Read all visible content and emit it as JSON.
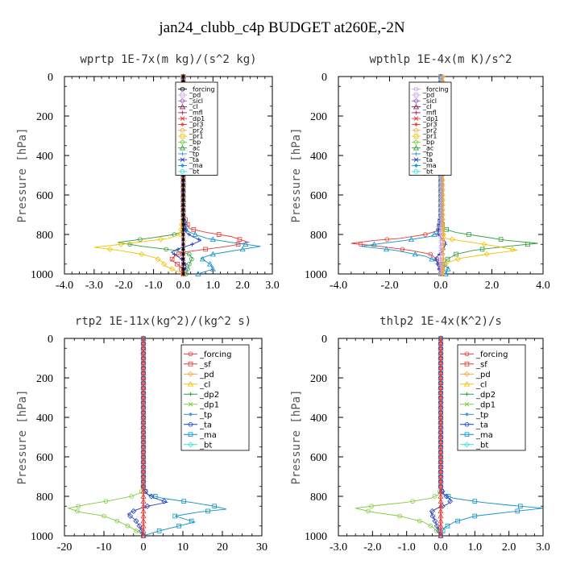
{
  "figure": {
    "title": "jan24_clubb_c4p  BUDGET at260E,-2N"
  },
  "chart_data": [
    {
      "type": "line",
      "title": "wprtp  1E-7x(m kg)/(s^2 kg)",
      "ylabel": "Pressure [hPa]",
      "xlim": [
        -4.0,
        3.0
      ],
      "ylim": [
        0,
        1000
      ],
      "y_inverted": false,
      "xticks": [
        "-4.0",
        "-3.0",
        "-2.0",
        "-1.0",
        "0.0",
        "1.0",
        "2.0",
        "3.0"
      ],
      "xtick_values": [
        -4,
        -3,
        -2,
        -1,
        0,
        1,
        2,
        3
      ],
      "yticks": [
        "0",
        "200",
        "400",
        "600",
        "800",
        "1000"
      ],
      "ytick_values": [
        0,
        200,
        400,
        600,
        800,
        1000
      ],
      "legend_style": "small",
      "legend": [
        "_forcing",
        "_pd",
        "_sicl",
        "_cl",
        "_mfl",
        "_dp1",
        "_pr3",
        "_pr2",
        "_pr1",
        "_bp",
        "_ac",
        "_tp",
        "_ta",
        "_ma",
        "_bt"
      ],
      "legend_colors": [
        "#000000",
        "#c8a0e6",
        "#9b5fc0",
        "#8b1a4a",
        "#c2185b",
        "#e53935",
        "#e53935",
        "#f4a742",
        "#f2c200",
        "#7ccc3a",
        "#2e9e3a",
        "#3a8fc4",
        "#1f3fbf",
        "#0b8fc7",
        "#33e0e0"
      ],
      "series": [
        {
          "color": "#2e9e3a",
          "x": [
            0,
            0,
            0,
            0.1,
            -0.3,
            -1.2,
            -2.2,
            -1.4,
            -0.3,
            0.2,
            0.3,
            0.2,
            0.1
          ],
          "y": [
            0,
            700,
            760,
            780,
            800,
            820,
            840,
            860,
            880,
            900,
            920,
            950,
            1000
          ]
        },
        {
          "color": "#e53935",
          "x": [
            0,
            0,
            0.2,
            0.8,
            1.6,
            2.2,
            1.5,
            0.5,
            0,
            -0.3,
            -0.4,
            -0.1,
            0
          ],
          "y": [
            0,
            700,
            770,
            790,
            810,
            840,
            860,
            880,
            890,
            910,
            930,
            960,
            1000
          ]
        },
        {
          "color": "#f2c200",
          "x": [
            0,
            0,
            -0.1,
            -0.5,
            -1.8,
            -3.0,
            -2.2,
            -1.4,
            -0.9,
            -0.7,
            -0.6,
            -0.3,
            0
          ],
          "y": [
            0,
            700,
            800,
            820,
            845,
            865,
            880,
            900,
            920,
            940,
            960,
            980,
            1000
          ]
        },
        {
          "color": "#0b8fc7",
          "x": [
            0,
            0,
            0.1,
            0.4,
            0.8,
            1.6,
            2.6,
            1.8,
            1.0,
            0.6,
            0.9,
            1.0,
            0.5
          ],
          "y": [
            0,
            700,
            780,
            800,
            820,
            840,
            860,
            880,
            900,
            920,
            950,
            975,
            1000
          ]
        },
        {
          "color": "#1f3fbf",
          "x": [
            0,
            0,
            0.1,
            0.3,
            0.6,
            0.3,
            -0.1,
            -0.4,
            -0.2,
            0,
            0.1,
            0
          ],
          "y": [
            0,
            700,
            790,
            810,
            830,
            850,
            870,
            890,
            910,
            930,
            960,
            1000
          ]
        },
        {
          "color": "#c2185b",
          "x": [
            0,
            0
          ],
          "y": [
            0,
            1000
          ]
        },
        {
          "color": "#000000",
          "x": [
            0,
            0
          ],
          "y": [
            0,
            1000
          ]
        }
      ]
    },
    {
      "type": "line",
      "title": "wpthlp  1E-4x(m K)/s^2",
      "ylabel": "Pressure [hPa]",
      "xlim": [
        -4.0,
        4.0
      ],
      "ylim": [
        0,
        1000
      ],
      "y_inverted": false,
      "xticks": [
        "-4.0",
        "-2.0",
        "0.0",
        "2.0",
        "4.0"
      ],
      "xtick_values": [
        -4,
        -2,
        0,
        2,
        4
      ],
      "yticks": [
        "0",
        "200",
        "400",
        "600",
        "800",
        "1000"
      ],
      "ytick_values": [
        0,
        200,
        400,
        600,
        800,
        1000
      ],
      "legend_style": "small",
      "legend": [
        "_forcing",
        "_pd",
        "_sicl",
        "_cl",
        "_mfl",
        "_dp1",
        "_pr3",
        "_pr2",
        "_pr1",
        "_bp",
        "_ac",
        "_tp",
        "_ta",
        "_ma",
        "_bt"
      ],
      "legend_colors": [
        "#c8a0e6",
        "#c8a0e6",
        "#9b5fc0",
        "#8b1a4a",
        "#c2185b",
        "#e53935",
        "#e53935",
        "#f4a742",
        "#f2c200",
        "#7ccc3a",
        "#2e9e3a",
        "#3a8fc4",
        "#1f3fbf",
        "#0b8fc7",
        "#33e0e0"
      ],
      "series": [
        {
          "color": "#e53935",
          "x": [
            0,
            0,
            -0.1,
            -0.6,
            -1.6,
            -2.6,
            -3.5,
            -2.4,
            -1.2,
            -0.4,
            -0.1,
            0
          ],
          "y": [
            0,
            700,
            780,
            800,
            820,
            830,
            845,
            860,
            880,
            900,
            930,
            1000
          ]
        },
        {
          "color": "#2e9e3a",
          "x": [
            0,
            0,
            0.1,
            0.6,
            1.6,
            2.6,
            3.8,
            2.6,
            1.3,
            0.6,
            0.2,
            0
          ],
          "y": [
            0,
            700,
            770,
            790,
            810,
            830,
            845,
            860,
            880,
            900,
            930,
            1000
          ]
        },
        {
          "color": "#f2c200",
          "x": [
            0,
            0,
            0.1,
            0.2,
            1.2,
            2.2,
            3.0,
            1.8,
            0.8,
            0.3,
            0.1,
            0
          ],
          "y": [
            0,
            700,
            800,
            820,
            840,
            860,
            880,
            900,
            920,
            940,
            960,
            1000
          ]
        },
        {
          "color": "#0b8fc7",
          "x": [
            0,
            0,
            -0.1,
            -0.4,
            -1.4,
            -2.6,
            -3.1,
            -1.8,
            -0.6,
            -0.1,
            0.3,
            0.2
          ],
          "y": [
            0,
            700,
            790,
            810,
            830,
            850,
            860,
            880,
            910,
            940,
            970,
            1000
          ]
        },
        {
          "color": "#1f3fbf",
          "x": [
            0,
            0,
            -0.1,
            0.2,
            0.1,
            -0.2,
            0
          ],
          "y": [
            0,
            700,
            800,
            840,
            880,
            920,
            1000
          ]
        },
        {
          "color": "#c8a0e6",
          "x": [
            0,
            0
          ],
          "y": [
            0,
            1000
          ]
        },
        {
          "color": "#f4a742",
          "x": [
            0.1,
            0.1
          ],
          "y": [
            0,
            1000
          ]
        }
      ]
    },
    {
      "type": "line",
      "title": "rtp2  1E-11x(kg^2)/(kg^2 s)",
      "ylabel": "Pressure [hPa]",
      "xlim": [
        -20,
        30
      ],
      "ylim": [
        0,
        1000
      ],
      "y_inverted": false,
      "xticks": [
        "-20",
        "-10",
        "0",
        "10",
        "20",
        "30"
      ],
      "xtick_values": [
        -20,
        -10,
        0,
        10,
        20,
        30
      ],
      "yticks": [
        "0",
        "200",
        "400",
        "600",
        "800",
        "1000"
      ],
      "ytick_values": [
        0,
        200,
        400,
        600,
        800,
        1000
      ],
      "legend_style": "big",
      "legend": [
        "_forcing",
        "_sf",
        "_pd",
        "_cl",
        "_dp2",
        "_dp1",
        "_tp",
        "_ta",
        "_ma",
        "_bt"
      ],
      "legend_colors": [
        "#e53935",
        "#e53935",
        "#f4a742",
        "#f2c200",
        "#2e9e3a",
        "#7ccc3a",
        "#3a8fc4",
        "#1f3fbf",
        "#0b8fc7",
        "#33e0e0"
      ],
      "series": [
        {
          "color": "#7ccc3a",
          "x": [
            0,
            0,
            -0.5,
            -3,
            -8,
            -14,
            -19,
            -16,
            -10,
            -6,
            -3,
            -1,
            0
          ],
          "y": [
            0,
            740,
            780,
            800,
            820,
            840,
            860,
            880,
            900,
            930,
            960,
            985,
            1000
          ]
        },
        {
          "color": "#0b8fc7",
          "x": [
            0,
            0,
            1,
            5,
            12,
            18,
            21,
            14,
            8,
            13,
            9,
            4,
            0
          ],
          "y": [
            0,
            760,
            790,
            810,
            830,
            850,
            865,
            880,
            900,
            930,
            950,
            975,
            1000
          ]
        },
        {
          "color": "#1f3fbf",
          "x": [
            0,
            0,
            1,
            3,
            6,
            1,
            -2,
            -4,
            -2,
            -1,
            0
          ],
          "y": [
            0,
            760,
            790,
            810,
            830,
            850,
            870,
            890,
            920,
            950,
            1000
          ]
        },
        {
          "color": "#e53935",
          "x": [
            0,
            0
          ],
          "y": [
            0,
            1000
          ]
        }
      ]
    },
    {
      "type": "line",
      "title": "thlp2  1E-4x(K^2)/s",
      "ylabel": "Pressure [hPa]",
      "xlim": [
        -3.0,
        3.0
      ],
      "ylim": [
        0,
        1000
      ],
      "y_inverted": false,
      "xticks": [
        "-3.0",
        "-2.0",
        "-1.0",
        "0.0",
        "1.0",
        "2.0",
        "3.0"
      ],
      "xtick_values": [
        -3,
        -2,
        -1,
        0,
        1,
        2,
        3
      ],
      "yticks": [
        "0",
        "200",
        "400",
        "600",
        "800",
        "1000"
      ],
      "ytick_values": [
        0,
        200,
        400,
        600,
        800,
        1000
      ],
      "legend_style": "big",
      "legend": [
        "_forcing",
        "_sf",
        "_pd",
        "_cl",
        "_dp2",
        "_dp1",
        "_tp",
        "_ta",
        "_ma",
        "_bt"
      ],
      "legend_colors": [
        "#e53935",
        "#e53935",
        "#f4a742",
        "#f2c200",
        "#2e9e3a",
        "#7ccc3a",
        "#3a8fc4",
        "#1f3fbf",
        "#0b8fc7",
        "#33e0e0"
      ],
      "series": [
        {
          "color": "#7ccc3a",
          "x": [
            0,
            0,
            -0.05,
            -0.3,
            -1.0,
            -1.8,
            -2.5,
            -2.0,
            -1.2,
            -0.5,
            -0.2,
            0
          ],
          "y": [
            0,
            760,
            790,
            810,
            830,
            845,
            860,
            880,
            900,
            930,
            960,
            1000
          ]
        },
        {
          "color": "#0b8fc7",
          "x": [
            0,
            0,
            0.05,
            0.4,
            1.2,
            2.0,
            3.0,
            2.0,
            1.0,
            0.4,
            0.1,
            0
          ],
          "y": [
            0,
            760,
            790,
            810,
            830,
            845,
            860,
            880,
            900,
            930,
            960,
            1000
          ]
        },
        {
          "color": "#1f3fbf",
          "x": [
            0,
            0,
            0.1,
            0.3,
            0.2,
            -0.1,
            -0.3,
            -0.2,
            0
          ],
          "y": [
            0,
            760,
            790,
            820,
            840,
            860,
            880,
            910,
            1000
          ]
        },
        {
          "color": "#e53935",
          "x": [
            0,
            0
          ],
          "y": [
            0,
            1000
          ]
        }
      ]
    }
  ]
}
